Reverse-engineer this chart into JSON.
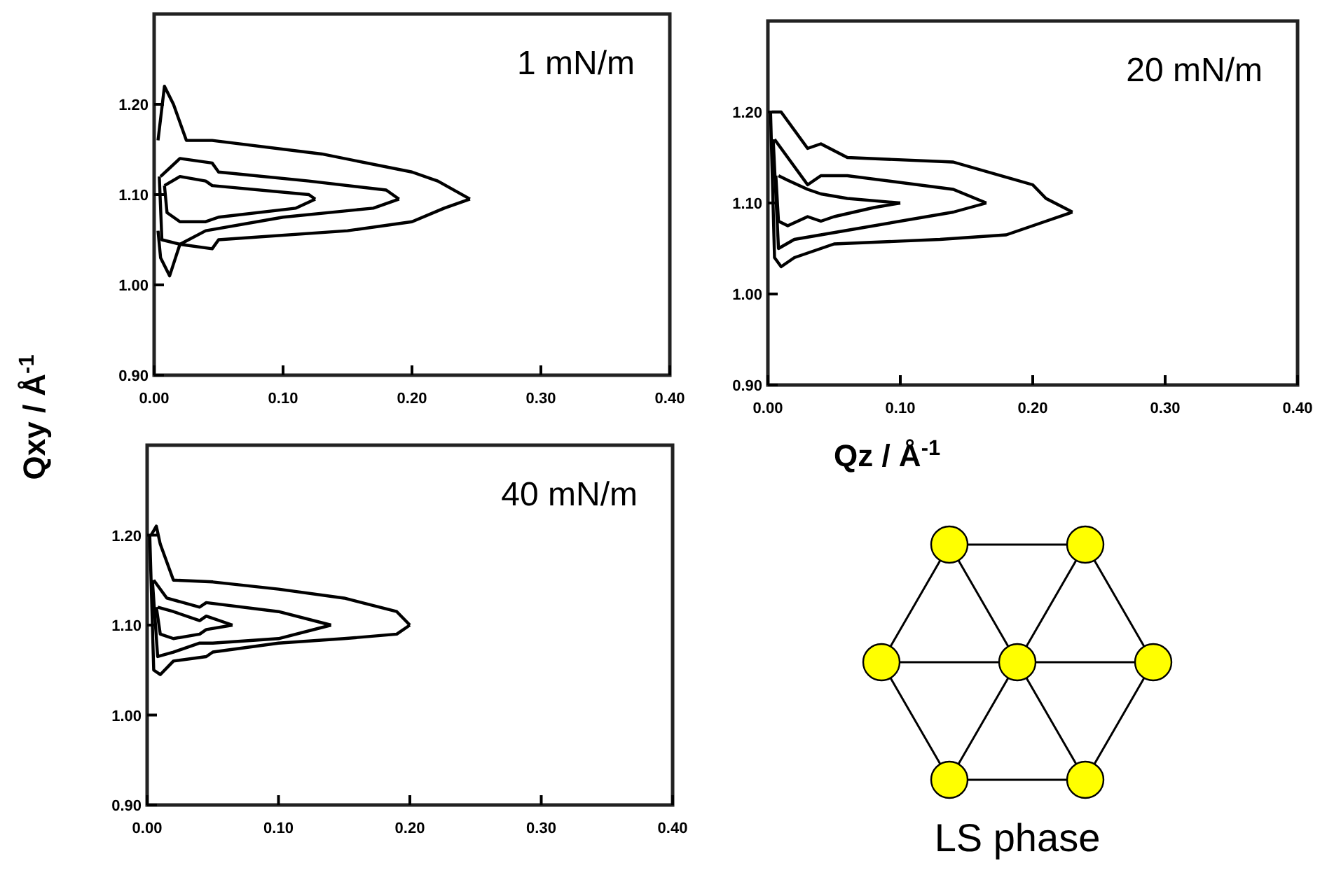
{
  "chart_data": [
    {
      "type": "line",
      "title": "1 mN/m",
      "ylabel": "Qxy / Å$^{-1}$",
      "xlim": [
        0,
        0.4
      ],
      "ylim": [
        0.9,
        1.3
      ],
      "xticks": [
        {
          "value": 0,
          "label": "0.00"
        },
        {
          "value": 0.1,
          "label": "0.10"
        },
        {
          "value": 0.2,
          "label": "0.20"
        },
        {
          "value": 0.3,
          "label": "0.30"
        },
        {
          "value": 0.4,
          "label": "0.40"
        }
      ],
      "yticks": [
        {
          "value": 0.9,
          "label": "0.90"
        },
        {
          "value": 1.0,
          "label": "1.00"
        },
        {
          "value": 1.1,
          "label": "1.10"
        },
        {
          "value": 1.2,
          "label": "1.20"
        }
      ],
      "series": [
        {
          "color": "#000000",
          "x": [
            0.003,
            0.008,
            0.015,
            0.025,
            0.045,
            0.13,
            0.2,
            0.22,
            0.245
          ],
          "values": [
            1.16,
            1.22,
            1.2,
            1.16,
            1.16,
            1.145,
            1.125,
            1.115,
            1.095
          ]
        },
        {
          "color": "#000000",
          "x": [
            0.003,
            0.005,
            0.012,
            0.02,
            0.045,
            0.05,
            0.15,
            0.2,
            0.225,
            0.245
          ],
          "values": [
            1.06,
            1.03,
            1.01,
            1.045,
            1.04,
            1.05,
            1.06,
            1.07,
            1.085,
            1.095
          ]
        },
        {
          "color": "#000000",
          "x": [
            0.005,
            0.02,
            0.045,
            0.05,
            0.12,
            0.18,
            0.19
          ],
          "values": [
            1.12,
            1.14,
            1.135,
            1.125,
            1.115,
            1.105,
            1.095
          ]
        },
        {
          "color": "#000000",
          "x": [
            0.004,
            0.006,
            0.02,
            0.04,
            0.1,
            0.17,
            0.19
          ],
          "values": [
            1.12,
            1.05,
            1.045,
            1.06,
            1.075,
            1.085,
            1.095
          ]
        },
        {
          "color": "#000000",
          "x": [
            0.008,
            0.02,
            0.04,
            0.045,
            0.12,
            0.125
          ],
          "values": [
            1.11,
            1.12,
            1.115,
            1.11,
            1.1,
            1.095
          ]
        },
        {
          "color": "#000000",
          "x": [
            0.008,
            0.01,
            0.02,
            0.04,
            0.05,
            0.11,
            0.125
          ],
          "values": [
            1.11,
            1.08,
            1.07,
            1.07,
            1.075,
            1.085,
            1.095
          ]
        }
      ]
    },
    {
      "type": "line",
      "title": "20 mN/m",
      "xlabel": "Qz / Å$^{-1}$",
      "xlim": [
        0,
        0.4
      ],
      "ylim": [
        0.9,
        1.3
      ],
      "xticks": [
        {
          "value": 0,
          "label": "0.00"
        },
        {
          "value": 0.1,
          "label": "0.10"
        },
        {
          "value": 0.2,
          "label": "0.20"
        },
        {
          "value": 0.3,
          "label": "0.30"
        },
        {
          "value": 0.4,
          "label": "0.40"
        }
      ],
      "yticks": [
        {
          "value": 0.9,
          "label": "0.90"
        },
        {
          "value": 1.0,
          "label": "1.00"
        },
        {
          "value": 1.1,
          "label": "1.10"
        },
        {
          "value": 1.2,
          "label": "1.20"
        }
      ],
      "series": [
        {
          "color": "#000000",
          "x": [
            0.003,
            0.01,
            0.02,
            0.03,
            0.04,
            0.06,
            0.14,
            0.2,
            0.21,
            0.23
          ],
          "values": [
            1.2,
            1.2,
            1.18,
            1.16,
            1.165,
            1.15,
            1.145,
            1.12,
            1.105,
            1.09
          ]
        },
        {
          "color": "#000000",
          "x": [
            0.002,
            0.005,
            0.01,
            0.02,
            0.04,
            0.05,
            0.13,
            0.18,
            0.21,
            0.23
          ],
          "values": [
            1.2,
            1.04,
            1.03,
            1.04,
            1.05,
            1.055,
            1.06,
            1.065,
            1.08,
            1.09
          ]
        },
        {
          "color": "#000000",
          "x": [
            0.005,
            0.015,
            0.03,
            0.04,
            0.06,
            0.14,
            0.165
          ],
          "values": [
            1.17,
            1.15,
            1.12,
            1.13,
            1.13,
            1.115,
            1.1
          ]
        },
        {
          "color": "#000000",
          "x": [
            0.004,
            0.008,
            0.02,
            0.04,
            0.06,
            0.14,
            0.165
          ],
          "values": [
            1.17,
            1.05,
            1.06,
            1.065,
            1.07,
            1.09,
            1.1
          ]
        },
        {
          "color": "#000000",
          "x": [
            0.008,
            0.015,
            0.03,
            0.04,
            0.06,
            0.1
          ],
          "values": [
            1.13,
            1.125,
            1.115,
            1.11,
            1.105,
            1.1
          ]
        },
        {
          "color": "#000000",
          "x": [
            0.006,
            0.008,
            0.015,
            0.03,
            0.04,
            0.05,
            0.08,
            0.1
          ],
          "values": [
            1.13,
            1.08,
            1.075,
            1.085,
            1.08,
            1.085,
            1.095,
            1.1
          ]
        }
      ]
    },
    {
      "type": "line",
      "title": "40 mN/m",
      "xlim": [
        0,
        0.4
      ],
      "ylim": [
        0.9,
        1.3
      ],
      "xticks": [
        {
          "value": 0,
          "label": "0.00"
        },
        {
          "value": 0.1,
          "label": "0.10"
        },
        {
          "value": 0.2,
          "label": "0.20"
        },
        {
          "value": 0.3,
          "label": "0.30"
        },
        {
          "value": 0.4,
          "label": "0.40"
        }
      ],
      "yticks": [
        {
          "value": 0.9,
          "label": "0.90"
        },
        {
          "value": 1.0,
          "label": "1.00"
        },
        {
          "value": 1.1,
          "label": "1.10"
        },
        {
          "value": 1.2,
          "label": "1.20"
        }
      ],
      "series": [
        {
          "color": "#000000",
          "x": [
            0.003,
            0.007,
            0.01,
            0.02,
            0.05,
            0.1,
            0.15,
            0.19,
            0.2
          ],
          "values": [
            1.2,
            1.21,
            1.19,
            1.15,
            1.148,
            1.14,
            1.13,
            1.115,
            1.1
          ]
        },
        {
          "color": "#000000",
          "x": [
            0.002,
            0.005,
            0.01,
            0.02,
            0.045,
            0.05,
            0.1,
            0.15,
            0.19,
            0.2
          ],
          "values": [
            1.2,
            1.05,
            1.045,
            1.06,
            1.065,
            1.07,
            1.08,
            1.085,
            1.09,
            1.1
          ]
        },
        {
          "color": "#000000",
          "x": [
            0.005,
            0.015,
            0.04,
            0.045,
            0.1,
            0.14
          ],
          "values": [
            1.15,
            1.13,
            1.12,
            1.125,
            1.115,
            1.1
          ]
        },
        {
          "color": "#000000",
          "x": [
            0.004,
            0.008,
            0.02,
            0.04,
            0.05,
            0.1,
            0.14
          ],
          "values": [
            1.15,
            1.065,
            1.07,
            1.08,
            1.08,
            1.085,
            1.1
          ]
        },
        {
          "color": "#000000",
          "x": [
            0.008,
            0.02,
            0.04,
            0.045,
            0.065
          ],
          "values": [
            1.12,
            1.115,
            1.105,
            1.11,
            1.1
          ]
        },
        {
          "color": "#000000",
          "x": [
            0.007,
            0.01,
            0.02,
            0.04,
            0.045,
            0.065
          ],
          "values": [
            1.12,
            1.09,
            1.085,
            1.09,
            1.095,
            1.1
          ]
        }
      ]
    },
    {
      "type": "other",
      "title": "LS phase"
    }
  ]
}
